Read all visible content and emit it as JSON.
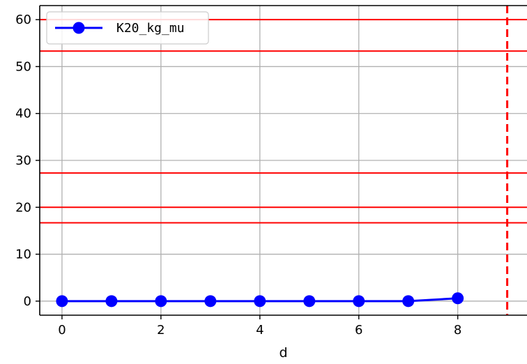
{
  "chart_data": {
    "type": "line",
    "xlabel": "d",
    "ylabel": "",
    "title": "",
    "xlim": [
      -0.45,
      9.4
    ],
    "ylim": [
      -3.0,
      63.0
    ],
    "xticks": [
      0,
      2,
      4,
      6,
      8
    ],
    "yticks": [
      0,
      10,
      20,
      30,
      40,
      50,
      60
    ],
    "grid": true,
    "legend_position": "upper-left",
    "series": [
      {
        "name": "K20_kg_mu",
        "color": "#0000ff",
        "marker": "circle",
        "x": [
          0,
          1,
          2,
          3,
          4,
          5,
          6,
          7,
          8
        ],
        "y": [
          0,
          0,
          0,
          0,
          0,
          0,
          0,
          0,
          0.6
        ]
      }
    ],
    "hlines": [
      {
        "y": 60,
        "color": "#ff0000",
        "style": "solid"
      },
      {
        "y": 53.3,
        "color": "#ff0000",
        "style": "solid"
      },
      {
        "y": 27.3,
        "color": "#ff0000",
        "style": "solid"
      },
      {
        "y": 20,
        "color": "#ff0000",
        "style": "solid"
      },
      {
        "y": 16.7,
        "color": "#ff0000",
        "style": "solid"
      }
    ],
    "vlines": [
      {
        "x": 9,
        "color": "#ff0000",
        "style": "dashed"
      }
    ]
  }
}
